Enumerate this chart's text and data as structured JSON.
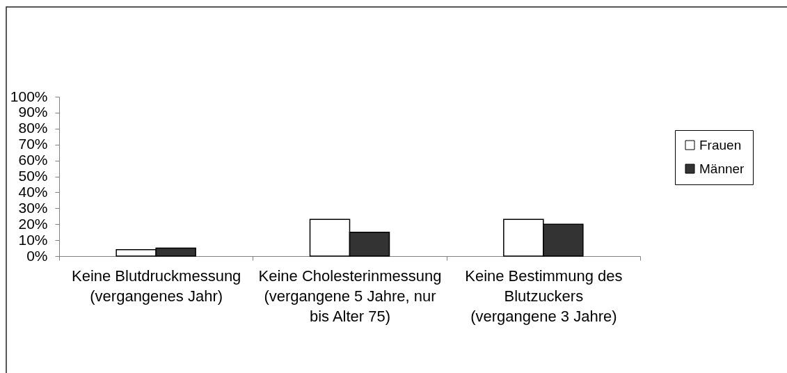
{
  "chart_data": {
    "type": "bar",
    "categories": [
      "Keine Blutdruckmessung\n(vergangenes Jahr)",
      "Keine Cholesterinmessung\n(vergangene 5 Jahre, nur\nbis Alter 75)",
      "Keine Bestimmung des\nBlutzuckers\n(vergangene 3 Jahre)"
    ],
    "series": [
      {
        "name": "Frauen",
        "color": "#ffffff",
        "values": [
          4,
          23,
          23
        ]
      },
      {
        "name": "Männer",
        "color": "#333333",
        "values": [
          5,
          15,
          20
        ]
      }
    ],
    "ylim": [
      0,
      100
    ],
    "yticks": [
      {
        "value": 0,
        "label": "0%"
      },
      {
        "value": 10,
        "label": "10%"
      },
      {
        "value": 20,
        "label": "20%"
      },
      {
        "value": 30,
        "label": "30%"
      },
      {
        "value": 40,
        "label": "40%"
      },
      {
        "value": 50,
        "label": "50%"
      },
      {
        "value": 60,
        "label": "60%"
      },
      {
        "value": 70,
        "label": "70%"
      },
      {
        "value": 80,
        "label": "80%"
      },
      {
        "value": 90,
        "label": "90%"
      },
      {
        "value": 100,
        "label": "100%"
      }
    ],
    "grid": false,
    "legend": "right"
  }
}
